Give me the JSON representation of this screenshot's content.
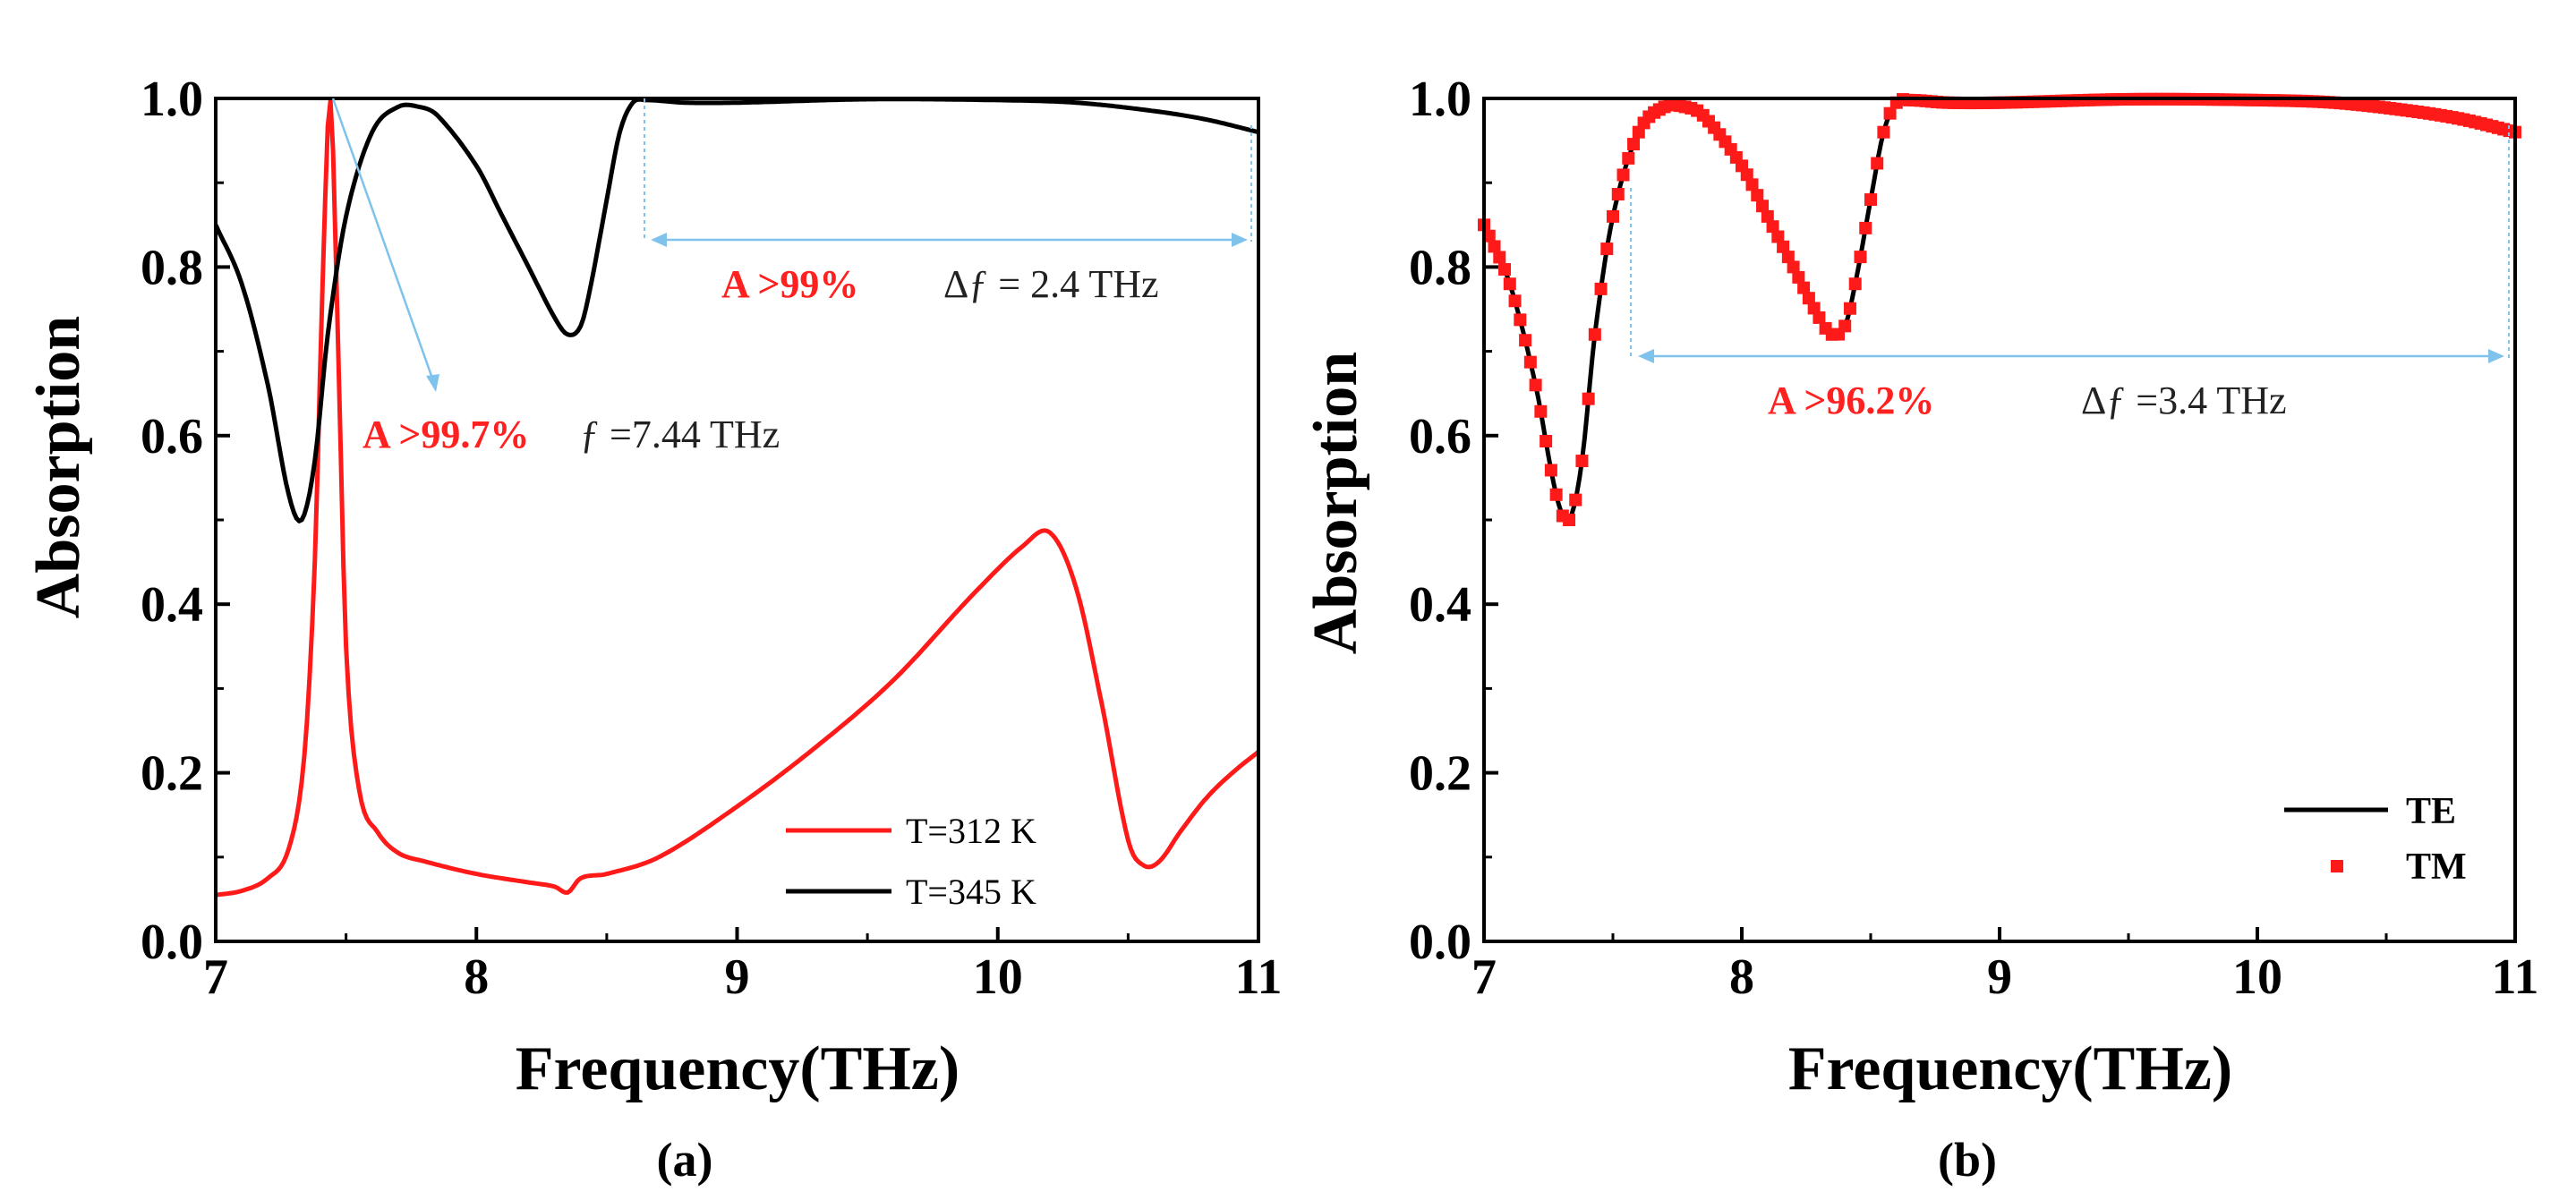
{
  "chart_data": [
    {
      "type": "line",
      "panel_label": "(a)",
      "xlabel": "Frequency(THz)",
      "ylabel": "Absorption",
      "xlim": [
        7,
        11
      ],
      "ylim": [
        0,
        1
      ],
      "x_ticks": [
        "7",
        "8",
        "9",
        "10",
        "11"
      ],
      "y_ticks": [
        "0.0",
        "0.2",
        "0.4",
        "0.6",
        "0.8",
        "1.0"
      ],
      "legend_position": "bottom-right",
      "series": [
        {
          "name": "T=312 K",
          "color": "#ff1a1a",
          "x": [
            7.0,
            7.1,
            7.2,
            7.28,
            7.34,
            7.38,
            7.41,
            7.44,
            7.47,
            7.5,
            7.55,
            7.62,
            7.7,
            7.8,
            8.0,
            8.2,
            8.3,
            8.35,
            8.4,
            8.5,
            8.7,
            9.0,
            9.3,
            9.6,
            9.9,
            10.1,
            10.2,
            10.3,
            10.4,
            10.5,
            10.56,
            10.62,
            10.7,
            10.8,
            10.9,
            11.0
          ],
          "y": [
            0.055,
            0.06,
            0.075,
            0.11,
            0.22,
            0.45,
            0.78,
            0.997,
            0.7,
            0.35,
            0.18,
            0.13,
            0.105,
            0.095,
            0.08,
            0.07,
            0.065,
            0.058,
            0.075,
            0.08,
            0.1,
            0.16,
            0.23,
            0.31,
            0.41,
            0.47,
            0.485,
            0.42,
            0.28,
            0.12,
            0.09,
            0.095,
            0.13,
            0.17,
            0.2,
            0.225
          ]
        },
        {
          "name": "T=345 K",
          "color": "#000000",
          "x": [
            7.0,
            7.1,
            7.2,
            7.28,
            7.33,
            7.38,
            7.43,
            7.5,
            7.6,
            7.7,
            7.78,
            7.85,
            8.0,
            8.1,
            8.2,
            8.3,
            8.35,
            8.4,
            8.44,
            8.5,
            8.55,
            8.6,
            8.65,
            8.8,
            9.0,
            9.5,
            10.0,
            10.3,
            10.6,
            10.8,
            11.0
          ],
          "y": [
            0.85,
            0.78,
            0.66,
            0.53,
            0.5,
            0.57,
            0.72,
            0.86,
            0.96,
            0.99,
            0.99,
            0.98,
            0.92,
            0.86,
            0.8,
            0.74,
            0.72,
            0.73,
            0.78,
            0.88,
            0.96,
            0.995,
            0.998,
            0.995,
            0.995,
            0.999,
            0.998,
            0.995,
            0.985,
            0.975,
            0.96
          ]
        }
      ],
      "annotations": [
        {
          "red": "A >99.7%",
          "black": "ƒ =7.44 THz"
        },
        {
          "red": "A >99%",
          "black": "Δƒ = 2.4 THz"
        }
      ]
    },
    {
      "type": "line",
      "panel_label": "(b)",
      "xlabel": "Frequency(THz)",
      "ylabel": "Absorption",
      "xlim": [
        7,
        11
      ],
      "ylim": [
        0,
        1
      ],
      "x_ticks": [
        "7",
        "8",
        "9",
        "10",
        "11"
      ],
      "y_ticks": [
        "0.0",
        "0.2",
        "0.4",
        "0.6",
        "0.8",
        "1.0"
      ],
      "legend_position": "bottom-right",
      "series": [
        {
          "name": "TE",
          "style": "line",
          "color": "#000000",
          "x": [
            7.0,
            7.1,
            7.2,
            7.28,
            7.33,
            7.38,
            7.43,
            7.5,
            7.6,
            7.7,
            7.78,
            7.85,
            8.0,
            8.1,
            8.2,
            8.3,
            8.35,
            8.4,
            8.44,
            8.5,
            8.55,
            8.6,
            8.65,
            8.8,
            9.0,
            9.5,
            10.0,
            10.3,
            10.6,
            10.8,
            11.0
          ],
          "y": [
            0.85,
            0.78,
            0.66,
            0.53,
            0.5,
            0.57,
            0.72,
            0.86,
            0.96,
            0.99,
            0.99,
            0.98,
            0.92,
            0.86,
            0.8,
            0.74,
            0.72,
            0.73,
            0.78,
            0.88,
            0.96,
            0.995,
            0.998,
            0.995,
            0.995,
            0.999,
            0.998,
            0.995,
            0.985,
            0.975,
            0.96
          ]
        },
        {
          "name": "TM",
          "style": "square-markers",
          "color": "#ff1a1a",
          "x": [
            7.0,
            7.1,
            7.2,
            7.28,
            7.33,
            7.38,
            7.43,
            7.5,
            7.6,
            7.7,
            7.78,
            7.85,
            8.0,
            8.1,
            8.2,
            8.3,
            8.35,
            8.4,
            8.44,
            8.5,
            8.55,
            8.6,
            8.65,
            8.8,
            9.0,
            9.5,
            10.0,
            10.3,
            10.6,
            10.8,
            11.0
          ],
          "y": [
            0.85,
            0.78,
            0.66,
            0.53,
            0.5,
            0.57,
            0.72,
            0.86,
            0.96,
            0.99,
            0.99,
            0.98,
            0.92,
            0.86,
            0.8,
            0.74,
            0.72,
            0.73,
            0.78,
            0.88,
            0.96,
            0.995,
            0.998,
            0.995,
            0.995,
            0.999,
            0.998,
            0.995,
            0.985,
            0.975,
            0.96
          ]
        }
      ],
      "annotations": [
        {
          "red": "A >96.2%",
          "black": "Δƒ =3.4 THz"
        }
      ]
    }
  ]
}
